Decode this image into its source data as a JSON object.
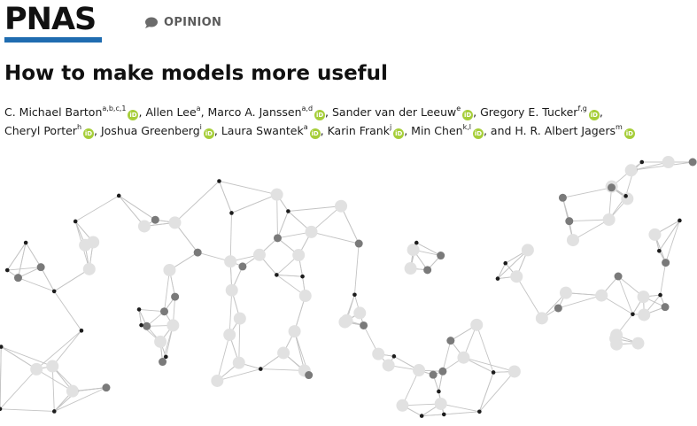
{
  "journal": {
    "name": "PNAS",
    "section": "OPINION",
    "accent_color": "#1f6cb0"
  },
  "article": {
    "title": "How to make models more useful"
  },
  "authors": [
    {
      "name": "C. Michael Barton",
      "sup": "a,b,c,1",
      "orcid": true,
      "sep": ", "
    },
    {
      "name": "Allen Lee",
      "sup": "a",
      "orcid": false,
      "sep": ", "
    },
    {
      "name": "Marco A. Janssen",
      "sup": "a,d",
      "orcid": true,
      "sep": ", "
    },
    {
      "name": "Sander van der Leeuw",
      "sup": "e",
      "orcid": true,
      "sep": ", "
    },
    {
      "name": "Gregory E. Tucker",
      "sup": "f,g",
      "orcid": true,
      "sep": ", "
    },
    {
      "name": "Cheryl Porter",
      "sup": "h",
      "orcid": true,
      "sep": ", "
    },
    {
      "name": "Joshua Greenberg",
      "sup": "i",
      "orcid": true,
      "sep": ", "
    },
    {
      "name": "Laura Swantek",
      "sup": "a",
      "orcid": true,
      "sep": ", "
    },
    {
      "name": "Karin Frank",
      "sup": "j",
      "orcid": true,
      "sep": ", "
    },
    {
      "name": "Min Chen",
      "sup": "k,l",
      "orcid": true,
      "sep": ", and "
    },
    {
      "name": "H. R. Albert Jagers",
      "sup": "m",
      "orcid": true,
      "sep": ""
    }
  ],
  "icons": {
    "section": "speech-bubble-icon",
    "orcid": "orcid-icon",
    "orcid_text": "iD",
    "illustration": "network-graph-illustration"
  }
}
